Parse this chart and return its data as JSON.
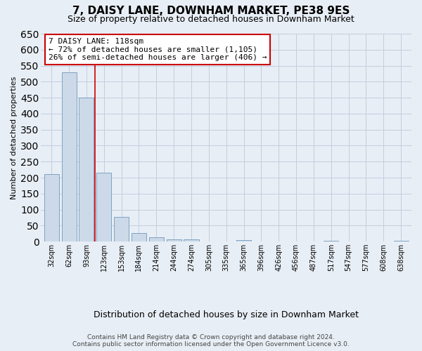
{
  "title": "7, DAISY LANE, DOWNHAM MARKET, PE38 9ES",
  "subtitle": "Size of property relative to detached houses in Downham Market",
  "xlabel": "Distribution of detached houses by size in Downham Market",
  "ylabel": "Number of detached properties",
  "categories": [
    "32sqm",
    "62sqm",
    "93sqm",
    "123sqm",
    "153sqm",
    "184sqm",
    "214sqm",
    "244sqm",
    "274sqm",
    "305sqm",
    "335sqm",
    "365sqm",
    "396sqm",
    "426sqm",
    "456sqm",
    "487sqm",
    "517sqm",
    "547sqm",
    "577sqm",
    "608sqm",
    "638sqm"
  ],
  "values": [
    210,
    530,
    450,
    215,
    78,
    27,
    14,
    8,
    6,
    0,
    0,
    5,
    0,
    0,
    0,
    0,
    2,
    0,
    0,
    0,
    2
  ],
  "bar_color": "#ccd9e8",
  "bar_edge_color": "#7098bc",
  "vline_color": "#cc0000",
  "vline_x": 2.5,
  "annotation_title": "7 DAISY LANE: 118sqm",
  "annotation_line1": "← 72% of detached houses are smaller (1,105)",
  "annotation_line2": "26% of semi-detached houses are larger (406) →",
  "annotation_box_facecolor": "#ffffff",
  "annotation_box_edgecolor": "#cc0000",
  "ylim": [
    0,
    650
  ],
  "yticks": [
    0,
    50,
    100,
    150,
    200,
    250,
    300,
    350,
    400,
    450,
    500,
    550,
    600,
    650
  ],
  "footer_line1": "Contains HM Land Registry data © Crown copyright and database right 2024.",
  "footer_line2": "Contains public sector information licensed under the Open Government Licence v3.0.",
  "bg_color": "#e8eef5",
  "plot_bg_color": "#e8eef5",
  "grid_color": "#c0cfe0",
  "title_fontsize": 11,
  "subtitle_fontsize": 9,
  "axis_label_fontsize": 8,
  "tick_fontsize": 7,
  "annotation_fontsize": 8,
  "footer_fontsize": 6.5
}
